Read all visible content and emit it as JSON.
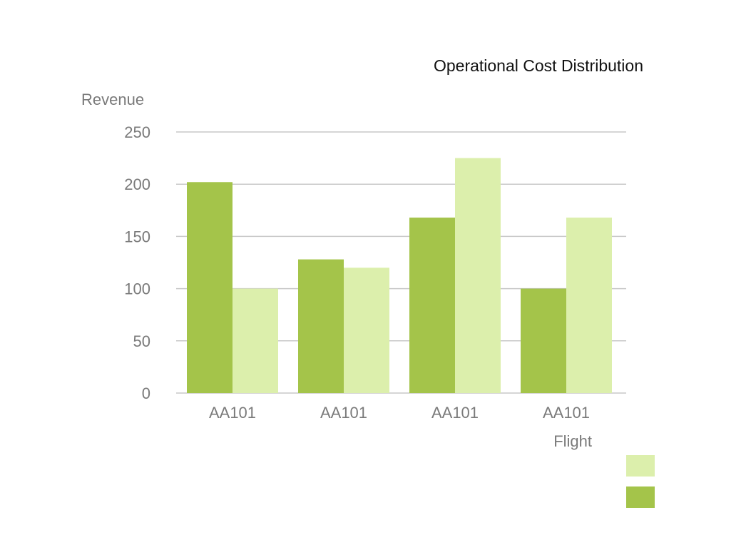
{
  "chart_data": {
    "type": "bar",
    "title": "Operational Cost Distribution",
    "xlabel": "Flight",
    "ylabel": "Revenue",
    "ylim": [
      0,
      250
    ],
    "yticks": [
      0,
      50,
      100,
      150,
      200,
      250
    ],
    "grid": true,
    "legend_position": "bottom-right",
    "categories": [
      "AA101",
      "AA101",
      "AA101",
      "AA101"
    ],
    "series": [
      {
        "color": "#a4c44a",
        "values": [
          202,
          128,
          168,
          100
        ]
      },
      {
        "color": "#dcefac",
        "values": [
          100,
          120,
          225,
          168
        ]
      }
    ]
  },
  "colors": {
    "grid": "#c8c8c8",
    "axis_text": "#7a7a7a",
    "title_text": "#111111",
    "background": "#ffffff"
  }
}
